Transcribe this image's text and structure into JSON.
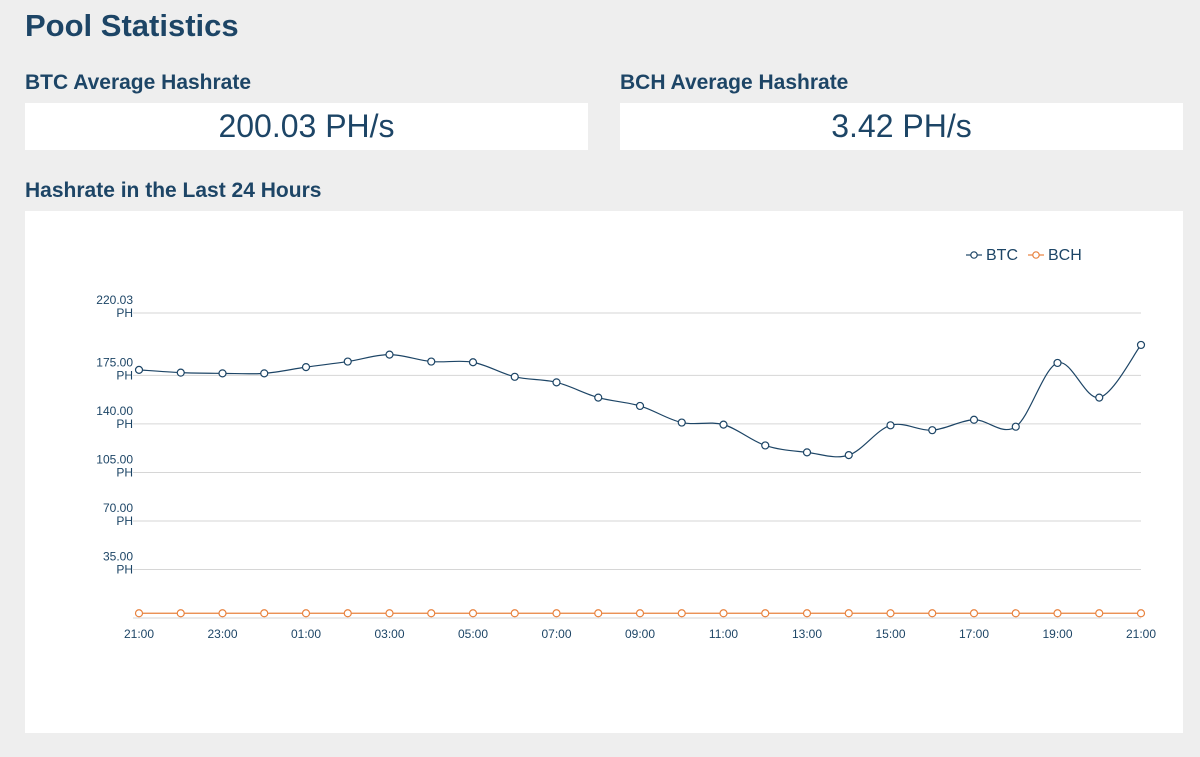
{
  "page": {
    "title": "Pool Statistics"
  },
  "stats": {
    "btc": {
      "label": "BTC Average Hashrate",
      "value": "200.03 PH/s"
    },
    "bch": {
      "label": "BCH Average Hashrate",
      "value": "3.42 PH/s"
    }
  },
  "chart_section": {
    "title": "Hashrate in the Last 24 Hours"
  },
  "colors": {
    "btc": "#1d4566",
    "bch": "#e8823e",
    "grid": "#d6d6d6",
    "text": "#1d4566"
  },
  "chart_data": {
    "type": "line",
    "title": "Hashrate in the Last 24 Hours",
    "xlabel": "",
    "ylabel": "",
    "unit": "PH",
    "ylim": [
      0,
      220.03
    ],
    "yticks": [
      35.0,
      70.0,
      105.0,
      140.0,
      175.0,
      220.03
    ],
    "ytick_labels": [
      "35.00",
      "70.00",
      "105.00",
      "140.00",
      "175.00",
      "220.03"
    ],
    "x": [
      "21:00",
      "22:00",
      "23:00",
      "00:00",
      "01:00",
      "02:00",
      "03:00",
      "04:00",
      "05:00",
      "06:00",
      "07:00",
      "08:00",
      "09:00",
      "10:00",
      "11:00",
      "12:00",
      "13:00",
      "14:00",
      "15:00",
      "16:00",
      "17:00",
      "18:00",
      "19:00",
      "20:00",
      "21:00"
    ],
    "xtick_labels": [
      "21:00",
      "23:00",
      "01:00",
      "03:00",
      "05:00",
      "07:00",
      "09:00",
      "11:00",
      "13:00",
      "15:00",
      "17:00",
      "19:00",
      "21:00"
    ],
    "legend": {
      "position": "top-right",
      "entries": [
        "BTC",
        "BCH"
      ]
    },
    "series": [
      {
        "name": "BTC",
        "values": [
          179,
          177,
          176.5,
          176.5,
          181,
          185,
          190,
          185,
          184.5,
          174,
          170,
          159,
          153,
          141,
          139.5,
          124.5,
          119.5,
          117.5,
          139,
          135.5,
          143,
          138,
          184,
          159,
          197
        ]
      },
      {
        "name": "BCH",
        "values": [
          3.4,
          3.4,
          3.4,
          3.4,
          3.4,
          3.4,
          3.4,
          3.4,
          3.4,
          3.4,
          3.4,
          3.4,
          3.4,
          3.4,
          3.4,
          3.4,
          3.4,
          3.4,
          3.4,
          3.4,
          3.4,
          3.4,
          3.4,
          3.4,
          3.4
        ]
      }
    ]
  }
}
